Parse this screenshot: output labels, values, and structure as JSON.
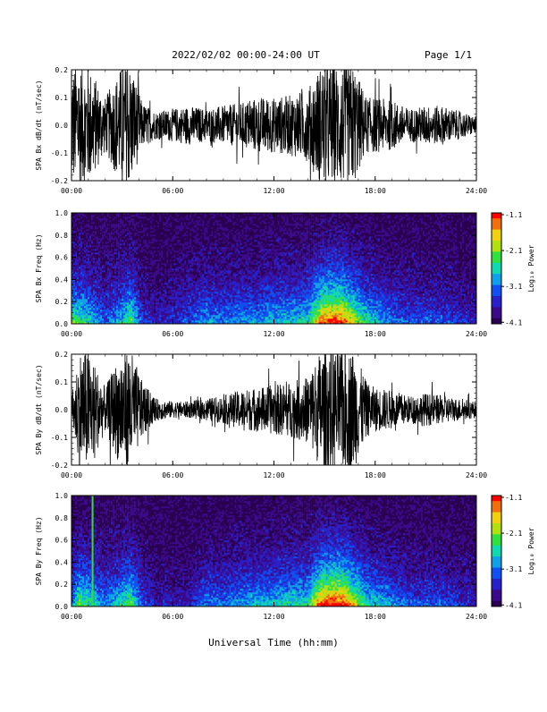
{
  "header": {
    "title": "2022/02/02  00:00-24:00 UT",
    "page": "Page 1/1"
  },
  "xlabel": "Universal Time (hh:mm)",
  "x_ticks": [
    "00:00",
    "06:00",
    "12:00",
    "18:00",
    "24:00"
  ],
  "colorbar": {
    "label": "Log₁₀ Power",
    "ticks": [
      "-1.1",
      "-2.1",
      "-3.1",
      "-4.1"
    ]
  },
  "colors": {
    "background": "#ffffff",
    "axis": "#000000",
    "trace": "#000000",
    "artifact_line": "#33dd33"
  },
  "colormap": [
    "#2a0050",
    "#3a0a88",
    "#2a20c8",
    "#1050f0",
    "#10a0e8",
    "#10d8b0",
    "#30e040",
    "#b0e010",
    "#f0d010",
    "#f07010",
    "#ff0000"
  ],
  "chart_data": [
    {
      "type": "line",
      "ylabel": "SPA Bx dB/dt (nT/sec)",
      "yticks": [
        "0.2",
        "0.1",
        "0.0",
        "-0.1",
        "-0.2"
      ],
      "ylim": [
        -0.2,
        0.2
      ],
      "xlim": [
        0,
        24
      ],
      "description_of_envelope_hours": [
        0,
        1,
        2,
        3,
        3.5,
        4.2,
        5,
        6,
        7,
        8,
        9,
        10,
        11,
        12,
        13,
        14,
        14.8,
        15.3,
        16,
        16.7,
        17.5,
        18,
        19,
        20,
        21,
        22,
        23,
        24
      ],
      "envelope": [
        0.22,
        0.22,
        0.1,
        0.22,
        0.22,
        0.08,
        0.05,
        0.06,
        0.07,
        0.06,
        0.07,
        0.08,
        0.1,
        0.1,
        0.11,
        0.13,
        0.22,
        0.22,
        0.22,
        0.22,
        0.1,
        0.1,
        0.09,
        0.06,
        0.07,
        0.07,
        0.05,
        0.03
      ]
    },
    {
      "type": "heatmap",
      "ylabel": "SPA Bx Freq (Hz)",
      "yticks": [
        "1.0",
        "0.8",
        "0.6",
        "0.4",
        "0.2",
        "0.0"
      ],
      "ylim": [
        0,
        1.0
      ],
      "xlim": [
        0,
        24
      ],
      "zlim": [
        -4.1,
        -1.1
      ],
      "activity_hours": [
        0,
        1,
        2,
        3,
        3.5,
        4.2,
        5,
        6,
        7,
        8,
        9,
        10,
        11,
        12,
        13,
        14,
        14.8,
        15.3,
        16,
        16.7,
        17.5,
        18,
        19,
        20,
        21,
        22,
        23,
        24
      ],
      "activity_level": [
        0.55,
        0.45,
        0.25,
        0.4,
        0.55,
        0.2,
        0.15,
        0.2,
        0.25,
        0.35,
        0.3,
        0.35,
        0.35,
        0.4,
        0.4,
        0.45,
        0.8,
        0.85,
        0.85,
        0.65,
        0.45,
        0.4,
        0.3,
        0.25,
        0.25,
        0.25,
        0.2,
        0.15
      ]
    },
    {
      "type": "line",
      "ylabel": "SPA By dB/dt (nT/sec)",
      "yticks": [
        "0.2",
        "0.1",
        "0.0",
        "-0.1",
        "-0.2"
      ],
      "ylim": [
        -0.2,
        0.2
      ],
      "xlim": [
        0,
        24
      ],
      "envelope_hours": [
        0,
        0.5,
        1,
        2,
        3,
        3.5,
        4.2,
        5,
        6,
        7,
        8,
        9,
        10,
        11,
        12,
        13,
        14,
        14.8,
        15.3,
        16,
        16.7,
        17.5,
        18,
        19,
        20,
        21,
        22,
        23,
        24
      ],
      "envelope": [
        0.05,
        0.22,
        0.22,
        0.08,
        0.22,
        0.22,
        0.1,
        0.04,
        0.03,
        0.03,
        0.04,
        0.05,
        0.07,
        0.08,
        0.09,
        0.1,
        0.12,
        0.22,
        0.22,
        0.22,
        0.22,
        0.1,
        0.08,
        0.07,
        0.05,
        0.06,
        0.05,
        0.04,
        0.03
      ]
    },
    {
      "type": "heatmap",
      "ylabel": "SPA By Freq (Hz)",
      "yticks": [
        "1.0",
        "0.8",
        "0.6",
        "0.4",
        "0.2",
        "0.0"
      ],
      "ylim": [
        0,
        1.0
      ],
      "xlim": [
        0,
        24
      ],
      "zlim": [
        -4.1,
        -1.1
      ],
      "artifact_line_hour": 1.25,
      "activity_hours": [
        0,
        0.5,
        1,
        2,
        3,
        3.5,
        4.2,
        5,
        6,
        7,
        8,
        9,
        10,
        11,
        12,
        13,
        14,
        14.8,
        15.3,
        16,
        16.7,
        17.5,
        18,
        19,
        20,
        21,
        22,
        23,
        24
      ],
      "activity_level": [
        0.3,
        0.55,
        0.5,
        0.3,
        0.45,
        0.55,
        0.25,
        0.15,
        0.15,
        0.15,
        0.3,
        0.3,
        0.35,
        0.4,
        0.4,
        0.45,
        0.45,
        0.85,
        0.9,
        0.9,
        0.7,
        0.45,
        0.4,
        0.35,
        0.25,
        0.25,
        0.25,
        0.2,
        0.15
      ]
    }
  ]
}
